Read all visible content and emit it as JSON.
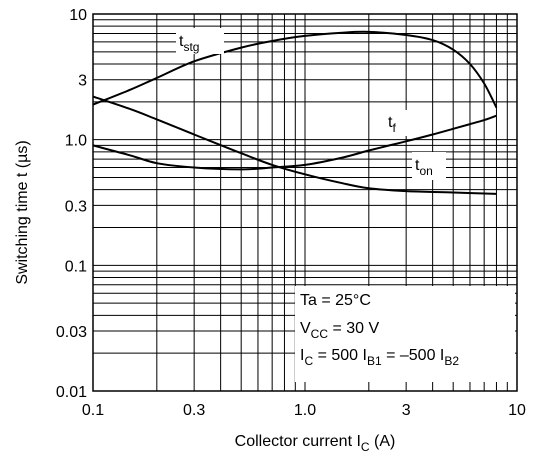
{
  "chart_data": {
    "type": "line",
    "xlabel": {
      "main": "Collector current  I",
      "sub": "C",
      "tail": "  (A)"
    },
    "ylabel": "Switching time  t  (µs)",
    "x_scale": "log",
    "y_scale": "log",
    "xlim": [
      0.1,
      10
    ],
    "ylim": [
      0.01,
      10
    ],
    "x_ticks": [
      0.1,
      0.3,
      1.0,
      3,
      10
    ],
    "x_tick_labels": [
      "0.1",
      "0.3",
      "1.0",
      "3",
      "10"
    ],
    "y_ticks": [
      0.01,
      0.03,
      0.1,
      0.3,
      1.0,
      3,
      10
    ],
    "y_tick_labels": [
      "0.01",
      "0.03",
      "0.1",
      "0.3",
      "1.0",
      "3",
      "10"
    ],
    "grid": true,
    "series": [
      {
        "name": "tstg",
        "label": {
          "main": "t",
          "sub": "stg"
        },
        "x": [
          0.1,
          0.15,
          0.2,
          0.3,
          0.5,
          0.7,
          1.0,
          1.5,
          2.0,
          3.0,
          4.0,
          5.0,
          6.0,
          7.0,
          8.0
        ],
        "y": [
          1.9,
          2.5,
          3.1,
          4.2,
          5.4,
          6.1,
          6.7,
          7.1,
          7.2,
          6.8,
          6.2,
          5.2,
          4.0,
          2.8,
          1.8
        ]
      },
      {
        "name": "tf",
        "label": {
          "main": "t",
          "sub": "f"
        },
        "x": [
          0.1,
          0.15,
          0.2,
          0.3,
          0.5,
          0.7,
          1.0,
          1.5,
          2.0,
          3.0,
          5.0,
          8.0
        ],
        "y": [
          2.2,
          1.75,
          1.45,
          1.1,
          0.78,
          0.63,
          0.53,
          0.45,
          0.41,
          0.39,
          0.38,
          0.37
        ]
      },
      {
        "name": "ton",
        "label": {
          "main": "t",
          "sub": "on"
        },
        "x": [
          0.1,
          0.15,
          0.2,
          0.3,
          0.5,
          0.7,
          1.0,
          1.5,
          2.0,
          2.5,
          3.0,
          4.0,
          5.0,
          6.0,
          7.0,
          8.0
        ],
        "y": [
          0.9,
          0.75,
          0.65,
          0.6,
          0.58,
          0.6,
          0.63,
          0.72,
          0.82,
          0.9,
          0.97,
          1.1,
          1.22,
          1.33,
          1.43,
          1.55
        ]
      }
    ],
    "conditions": [
      {
        "main": "Ta = 25°C",
        "sub": "",
        "tail": ""
      },
      {
        "main": "V",
        "sub": "CC",
        "tail": " = 30 V"
      },
      {
        "main": "I",
        "sub": "C",
        "tail": " = 500 I",
        "sub2": "B1",
        "tail2": " = –500 I",
        "sub3": "B2"
      }
    ]
  }
}
